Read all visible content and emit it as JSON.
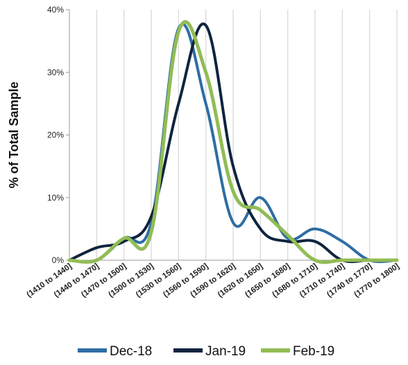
{
  "chart_data": {
    "type": "line",
    "smooth": true,
    "title": "",
    "xlabel": "",
    "ylabel": "% of Total Sample",
    "ylim": [
      0,
      40
    ],
    "yticks": [
      "0%",
      "10%",
      "20%",
      "30%",
      "40%"
    ],
    "grid": "vertical",
    "legend": "bottom",
    "categories": [
      "(1410 to 1440]",
      "(1440 to 1470]",
      "(1470 to 1500]",
      "(1500 to 1530]",
      "(1530 to 1560]",
      "(1560 to 1590]",
      "(1590 to 1620]",
      "(1620 to 1650]",
      "(1650 to 1680]",
      "(1680 to 1710]",
      "(1710 to 1740]",
      "(1740 to 1770]",
      "(1770 to 1800]"
    ],
    "series": [
      {
        "name": "Dec-18",
        "color": "#2E6DA4",
        "values": [
          0,
          0,
          3.5,
          6,
          37,
          25,
          6,
          10,
          3.5,
          5,
          3,
          0,
          0
        ]
      },
      {
        "name": "Jan-19",
        "color": "#0F243E",
        "values": [
          0,
          2,
          3,
          7,
          25,
          37.5,
          15,
          5,
          3,
          3,
          0,
          0,
          0
        ]
      },
      {
        "name": "Feb-19",
        "color": "#92BC55",
        "values": [
          0,
          0,
          3.5,
          4.5,
          36.5,
          30,
          11,
          8,
          4,
          0,
          0,
          0,
          0
        ]
      }
    ]
  }
}
